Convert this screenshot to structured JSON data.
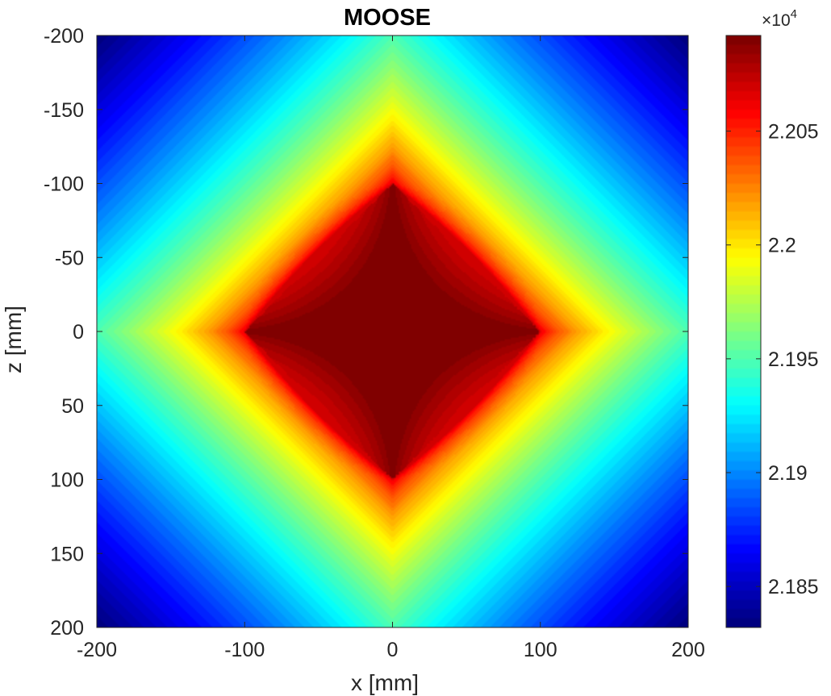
{
  "chart_data": {
    "type": "heatmap",
    "title": "MOOSE",
    "xlabel": "x [mm]",
    "ylabel": "z [mm]",
    "xlim": [
      -200,
      200
    ],
    "ylim": [
      -200,
      200
    ],
    "y_reversed": true,
    "x_ticks": [
      -200,
      -100,
      0,
      100,
      200
    ],
    "x_tick_labels": [
      "-200",
      "-100",
      "0",
      "100",
      "200"
    ],
    "y_ticks": [
      -200,
      -150,
      -100,
      -50,
      0,
      50,
      100,
      150,
      200
    ],
    "y_tick_labels": [
      "-200",
      "-150",
      "-100",
      "-50",
      "0",
      "50",
      "100",
      "150",
      "200"
    ],
    "colormap": "jet",
    "colorbar": {
      "range": [
        21832,
        22092
      ],
      "ticks": [
        21850,
        21900,
        21950,
        22000,
        22050
      ],
      "tick_labels": [
        "2.185",
        "2.19",
        "2.195",
        "2.2",
        "2.205"
      ],
      "exponent_base": "×10",
      "exponent_power": "4"
    },
    "field": {
      "description_values": "peak plateau along diamond |x|+|z|<=100 with cusps at the four axis tips",
      "peak_value": 22092,
      "corner_value": 21832,
      "diamond_half_width": 100
    },
    "grid": false,
    "colors": {
      "axes": "#262626",
      "background": "#ffffff"
    }
  }
}
